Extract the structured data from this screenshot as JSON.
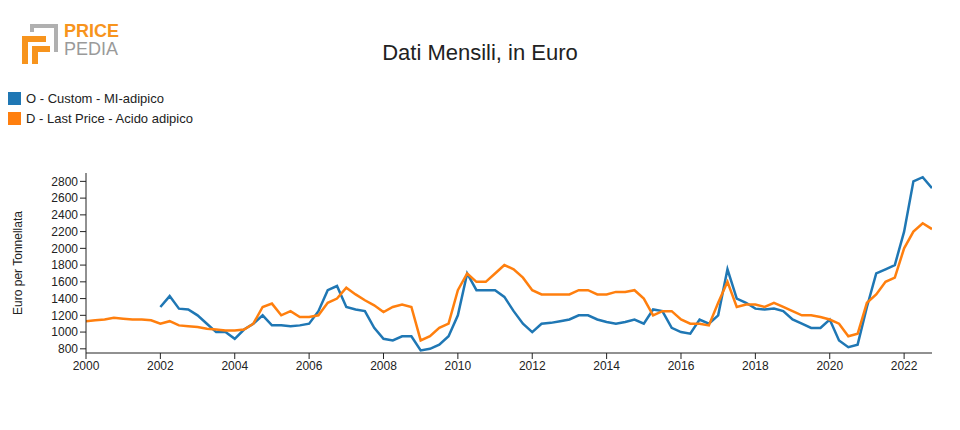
{
  "logo": [
    "PRICE",
    "PEDIA"
  ],
  "chart_data": {
    "type": "line",
    "title": "Dati Mensili, in Euro",
    "y_label": "Euro per Tonnellata",
    "legend": "top-left",
    "grid": false,
    "x": [
      2000,
      2000.25,
      2000.5,
      2000.75,
      2001,
      2001.25,
      2001.5,
      2001.75,
      2002,
      2002.25,
      2002.5,
      2002.75,
      2003,
      2003.25,
      2003.5,
      2003.75,
      2004,
      2004.25,
      2004.5,
      2004.75,
      2005,
      2005.25,
      2005.5,
      2005.75,
      2006,
      2006.25,
      2006.5,
      2006.75,
      2007,
      2007.25,
      2007.5,
      2007.75,
      2008,
      2008.25,
      2008.5,
      2008.75,
      2009,
      2009.25,
      2009.5,
      2009.75,
      2010,
      2010.25,
      2010.5,
      2010.75,
      2011,
      2011.25,
      2011.5,
      2011.75,
      2012,
      2012.25,
      2012.5,
      2012.75,
      2013,
      2013.25,
      2013.5,
      2013.75,
      2014,
      2014.25,
      2014.5,
      2014.75,
      2015,
      2015.25,
      2015.5,
      2015.75,
      2016,
      2016.25,
      2016.5,
      2016.75,
      2017,
      2017.25,
      2017.5,
      2017.75,
      2018,
      2018.25,
      2018.5,
      2018.75,
      2019,
      2019.25,
      2019.5,
      2019.75,
      2020,
      2020.25,
      2020.5,
      2020.75,
      2021,
      2021.25,
      2021.5,
      2021.75,
      2022,
      2022.25,
      2022.5,
      2022.75
    ],
    "xlim": [
      2000,
      2022.75
    ],
    "xticks": [
      2000,
      2002,
      2004,
      2006,
      2008,
      2010,
      2012,
      2014,
      2016,
      2018,
      2020,
      2022
    ],
    "ylim": [
      750,
      2900
    ],
    "yticks": [
      800,
      1000,
      1200,
      1400,
      1600,
      1800,
      2000,
      2200,
      2400,
      2600,
      2800
    ],
    "series": [
      {
        "name": "O - Custom - MI-adipico",
        "color": "#1f77b4",
        "values": [
          null,
          null,
          null,
          null,
          null,
          null,
          null,
          null,
          1300,
          1430,
          1280,
          1270,
          1200,
          1100,
          1000,
          1000,
          920,
          1030,
          1100,
          1200,
          1080,
          1080,
          1070,
          1080,
          1100,
          1250,
          1500,
          1550,
          1300,
          1270,
          1250,
          1050,
          920,
          900,
          950,
          950,
          780,
          800,
          850,
          950,
          1200,
          1700,
          1500,
          1500,
          1500,
          1420,
          1250,
          1100,
          1000,
          1100,
          1110,
          1130,
          1150,
          1200,
          1200,
          1150,
          1120,
          1100,
          1120,
          1150,
          1100,
          1270,
          1250,
          1050,
          1000,
          980,
          1150,
          1100,
          1200,
          1750,
          1400,
          1350,
          1280,
          1270,
          1280,
          1250,
          1150,
          1100,
          1050,
          1050,
          1150,
          900,
          820,
          850,
          1300,
          1700,
          1750,
          1800,
          2200,
          2800,
          2850,
          2720
        ]
      },
      {
        "name": "D - Last Price - Acido adipico",
        "color": "#ff7f0e",
        "values": [
          1130,
          1140,
          1150,
          1170,
          1160,
          1150,
          1150,
          1140,
          1100,
          1130,
          1080,
          1070,
          1060,
          1040,
          1030,
          1020,
          1020,
          1030,
          1100,
          1300,
          1340,
          1200,
          1250,
          1180,
          1180,
          1200,
          1350,
          1400,
          1530,
          1450,
          1380,
          1320,
          1240,
          1300,
          1330,
          1300,
          900,
          950,
          1050,
          1100,
          1500,
          1700,
          1600,
          1600,
          1700,
          1800,
          1750,
          1650,
          1500,
          1450,
          1450,
          1450,
          1450,
          1500,
          1500,
          1450,
          1450,
          1480,
          1480,
          1500,
          1400,
          1200,
          1250,
          1250,
          1150,
          1100,
          1100,
          1080,
          1350,
          1600,
          1300,
          1330,
          1330,
          1300,
          1350,
          1300,
          1250,
          1200,
          1200,
          1180,
          1150,
          1100,
          950,
          980,
          1350,
          1450,
          1600,
          1650,
          2000,
          2200,
          2300,
          2230
        ]
      }
    ]
  }
}
